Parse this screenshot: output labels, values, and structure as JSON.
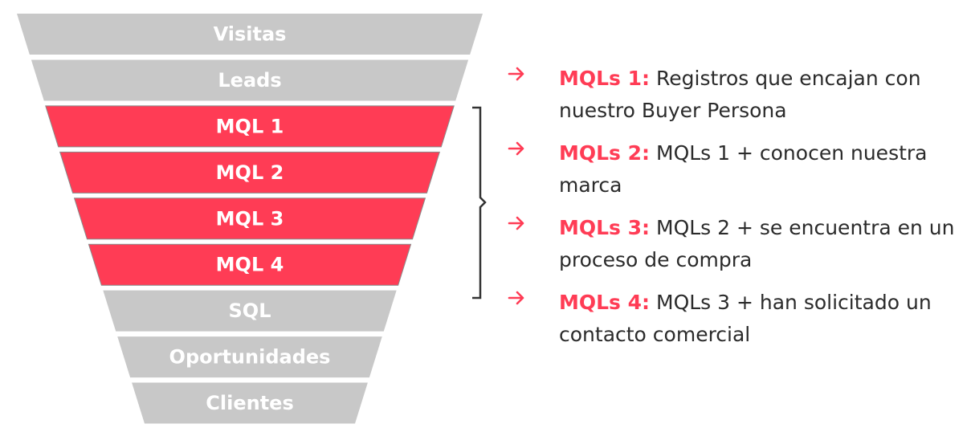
{
  "colors": {
    "highlight": "#ff3c55",
    "neutral": "#c8c8c8",
    "label": "#ffffff",
    "text": "#2b2b2b",
    "bracket": "#333333"
  },
  "funnel": {
    "stages": [
      {
        "label": "Visitas",
        "highlight": false
      },
      {
        "label": "Leads",
        "highlight": false
      },
      {
        "label": "MQL 1",
        "highlight": true
      },
      {
        "label": "MQL 2",
        "highlight": true
      },
      {
        "label": "MQL 3",
        "highlight": true
      },
      {
        "label": "MQL 4",
        "highlight": true
      },
      {
        "label": "SQL",
        "highlight": false
      },
      {
        "label": "Oportunidades",
        "highlight": false
      },
      {
        "label": "Clientes",
        "highlight": false
      }
    ]
  },
  "descriptions": [
    {
      "key": "MQLs 1:",
      "text": "Registros que encajan con nuestro Buyer Persona"
    },
    {
      "key": "MQLs 2:",
      "text": "MQLs 1 + conocen nuestra marca"
    },
    {
      "key": "MQLs 3:",
      "text": "MQLs 2 + se encuentra en un proceso de compra"
    },
    {
      "key": "MQLs 4:",
      "text": "MQLs 3 + han solicitado un contacto comercial"
    }
  ]
}
